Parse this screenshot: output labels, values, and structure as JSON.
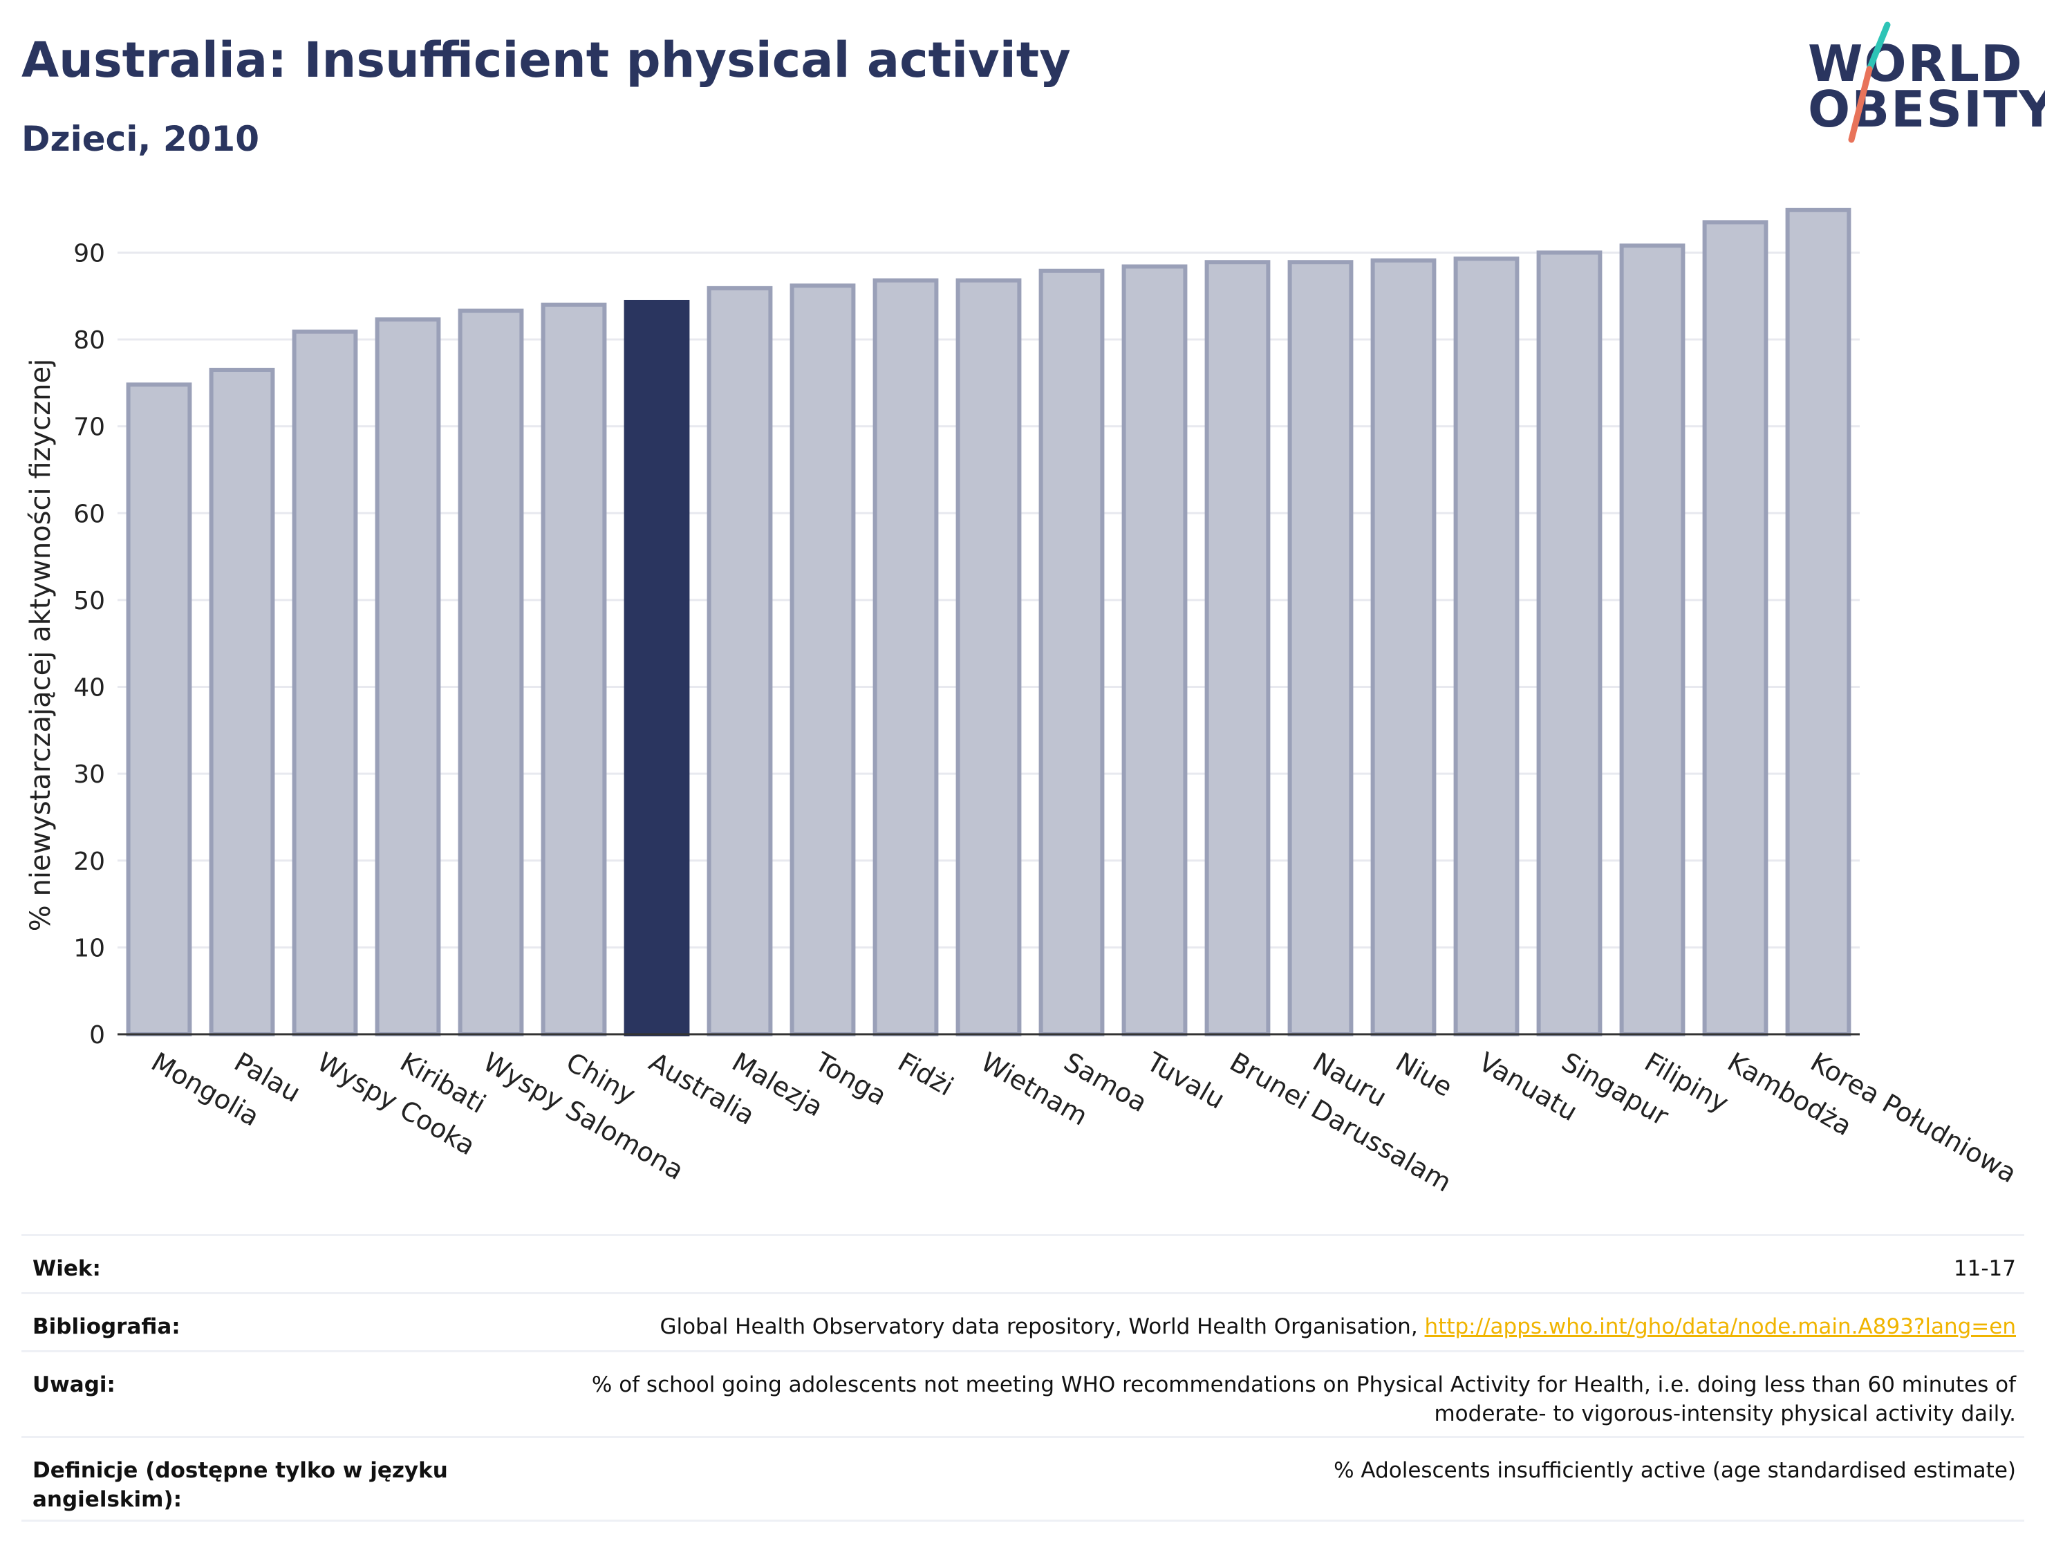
{
  "header": {
    "title": "Australia: Insufficient physical activity",
    "subtitle": "Dzieci, 2010"
  },
  "logo": {
    "line1": "WORLD",
    "line2": "OBESITY",
    "slash_colors": [
      "#2ec4b6",
      "#e8735a"
    ]
  },
  "colors": {
    "highlight_bar": "#2a355f",
    "bar_fill": "#bfc3d1",
    "bar_stroke": "#9aa0b8",
    "grid": "#e8e9ef",
    "link": "#f0b400"
  },
  "chart_data": {
    "type": "bar",
    "title": "",
    "ylabel": "% niewystarczającej aktywności fizycznej",
    "xlabel": "",
    "ylim": [
      0,
      96
    ],
    "yticks": [
      0,
      10,
      20,
      30,
      40,
      50,
      60,
      70,
      80,
      90
    ],
    "grid": true,
    "highlight": "Australia",
    "categories": [
      "Mongolia",
      "Palau",
      "Wyspy Cooka",
      "Kiribati",
      "Wyspy Salomona",
      "Chiny",
      "Australia",
      "Malezja",
      "Tonga",
      "Fidżi",
      "Wietnam",
      "Samoa",
      "Tuvalu",
      "Brunei Darussalam",
      "Nauru",
      "Niue",
      "Vanuatu",
      "Singapur",
      "Filipiny",
      "Kambodża",
      "Korea Południowa"
    ],
    "values": [
      74.8,
      76.5,
      80.9,
      82.3,
      83.3,
      84.0,
      84.3,
      85.9,
      86.2,
      86.8,
      86.8,
      87.9,
      88.4,
      88.9,
      88.9,
      89.1,
      89.3,
      90.0,
      90.8,
      93.5,
      94.9
    ]
  },
  "meta": {
    "rows": [
      {
        "label": "Wiek:",
        "value": "11-17"
      },
      {
        "label": "Bibliografia:",
        "value": "Global Health Observatory data repository, World Health Organisation, ",
        "link": "http://apps.who.int/gho/data/node.main.A893?lang=en"
      },
      {
        "label": "Uwagi:",
        "value": "% of school going adolescents not meeting WHO recommendations on Physical Activity for Health, i.e. doing less than 60 minutes of moderate- to vigorous-intensity physical activity daily."
      },
      {
        "label": "Definicje (dostępne tylko w języku angielskim):",
        "value": "% Adolescents insufficiently active (age standardised estimate)"
      }
    ]
  }
}
